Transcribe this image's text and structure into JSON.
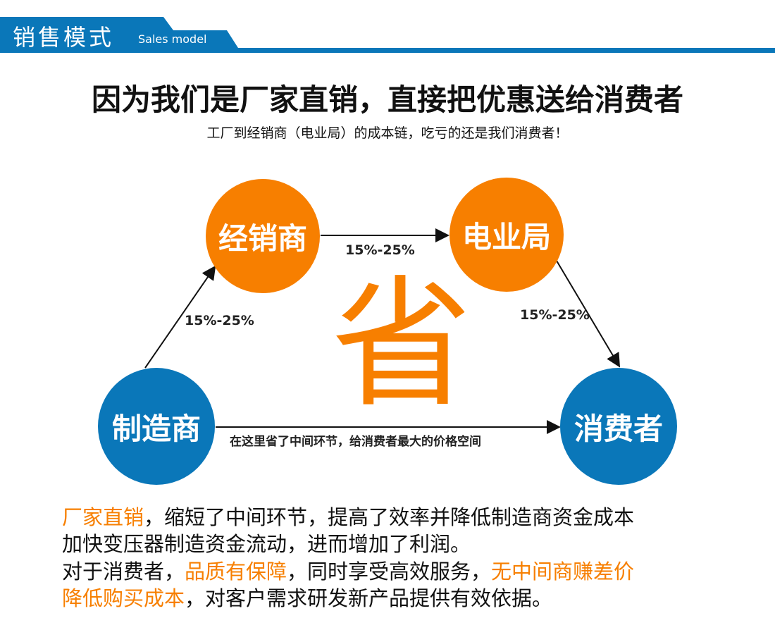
{
  "header": {
    "title": "销售模式",
    "subtitle": "Sales model"
  },
  "headline": "因为我们是厂家直销，直接把优惠送给消费者",
  "subline": "工厂到经销商（电业局）的成本链，吃亏的还是我们消费者！",
  "diagram": {
    "nodes": {
      "manufacturer": "制造商",
      "dealer": "经销商",
      "power_bureau": "电业局",
      "consumer": "消费者"
    },
    "edge_labels": {
      "m_to_d": "15%-25%",
      "d_to_p": "15%-25%",
      "p_to_c": "15%-25%",
      "m_to_c": "在这里省了中间环节，给消费者最大的价格空间"
    },
    "center_char": "省"
  },
  "paragraphs": {
    "p1_hl": "厂家直销",
    "p1_a": "，缩短了中间环节，提高了效率并降低制造商资金成本",
    "p1_b": "加快变压器制造资金流动，进而增加了利润。",
    "p2_a": "对于消费者，",
    "p2_hl1": "品质有保障",
    "p2_b": "，同时享受高效服务，",
    "p2_hl2": "无中间商赚差价",
    "p2_hl3": "降低购买成本",
    "p2_c": "，对客户需求研发新产品提供有效依据。"
  },
  "colors": {
    "blue": "#0a77b9",
    "orange": "#f77f00"
  }
}
